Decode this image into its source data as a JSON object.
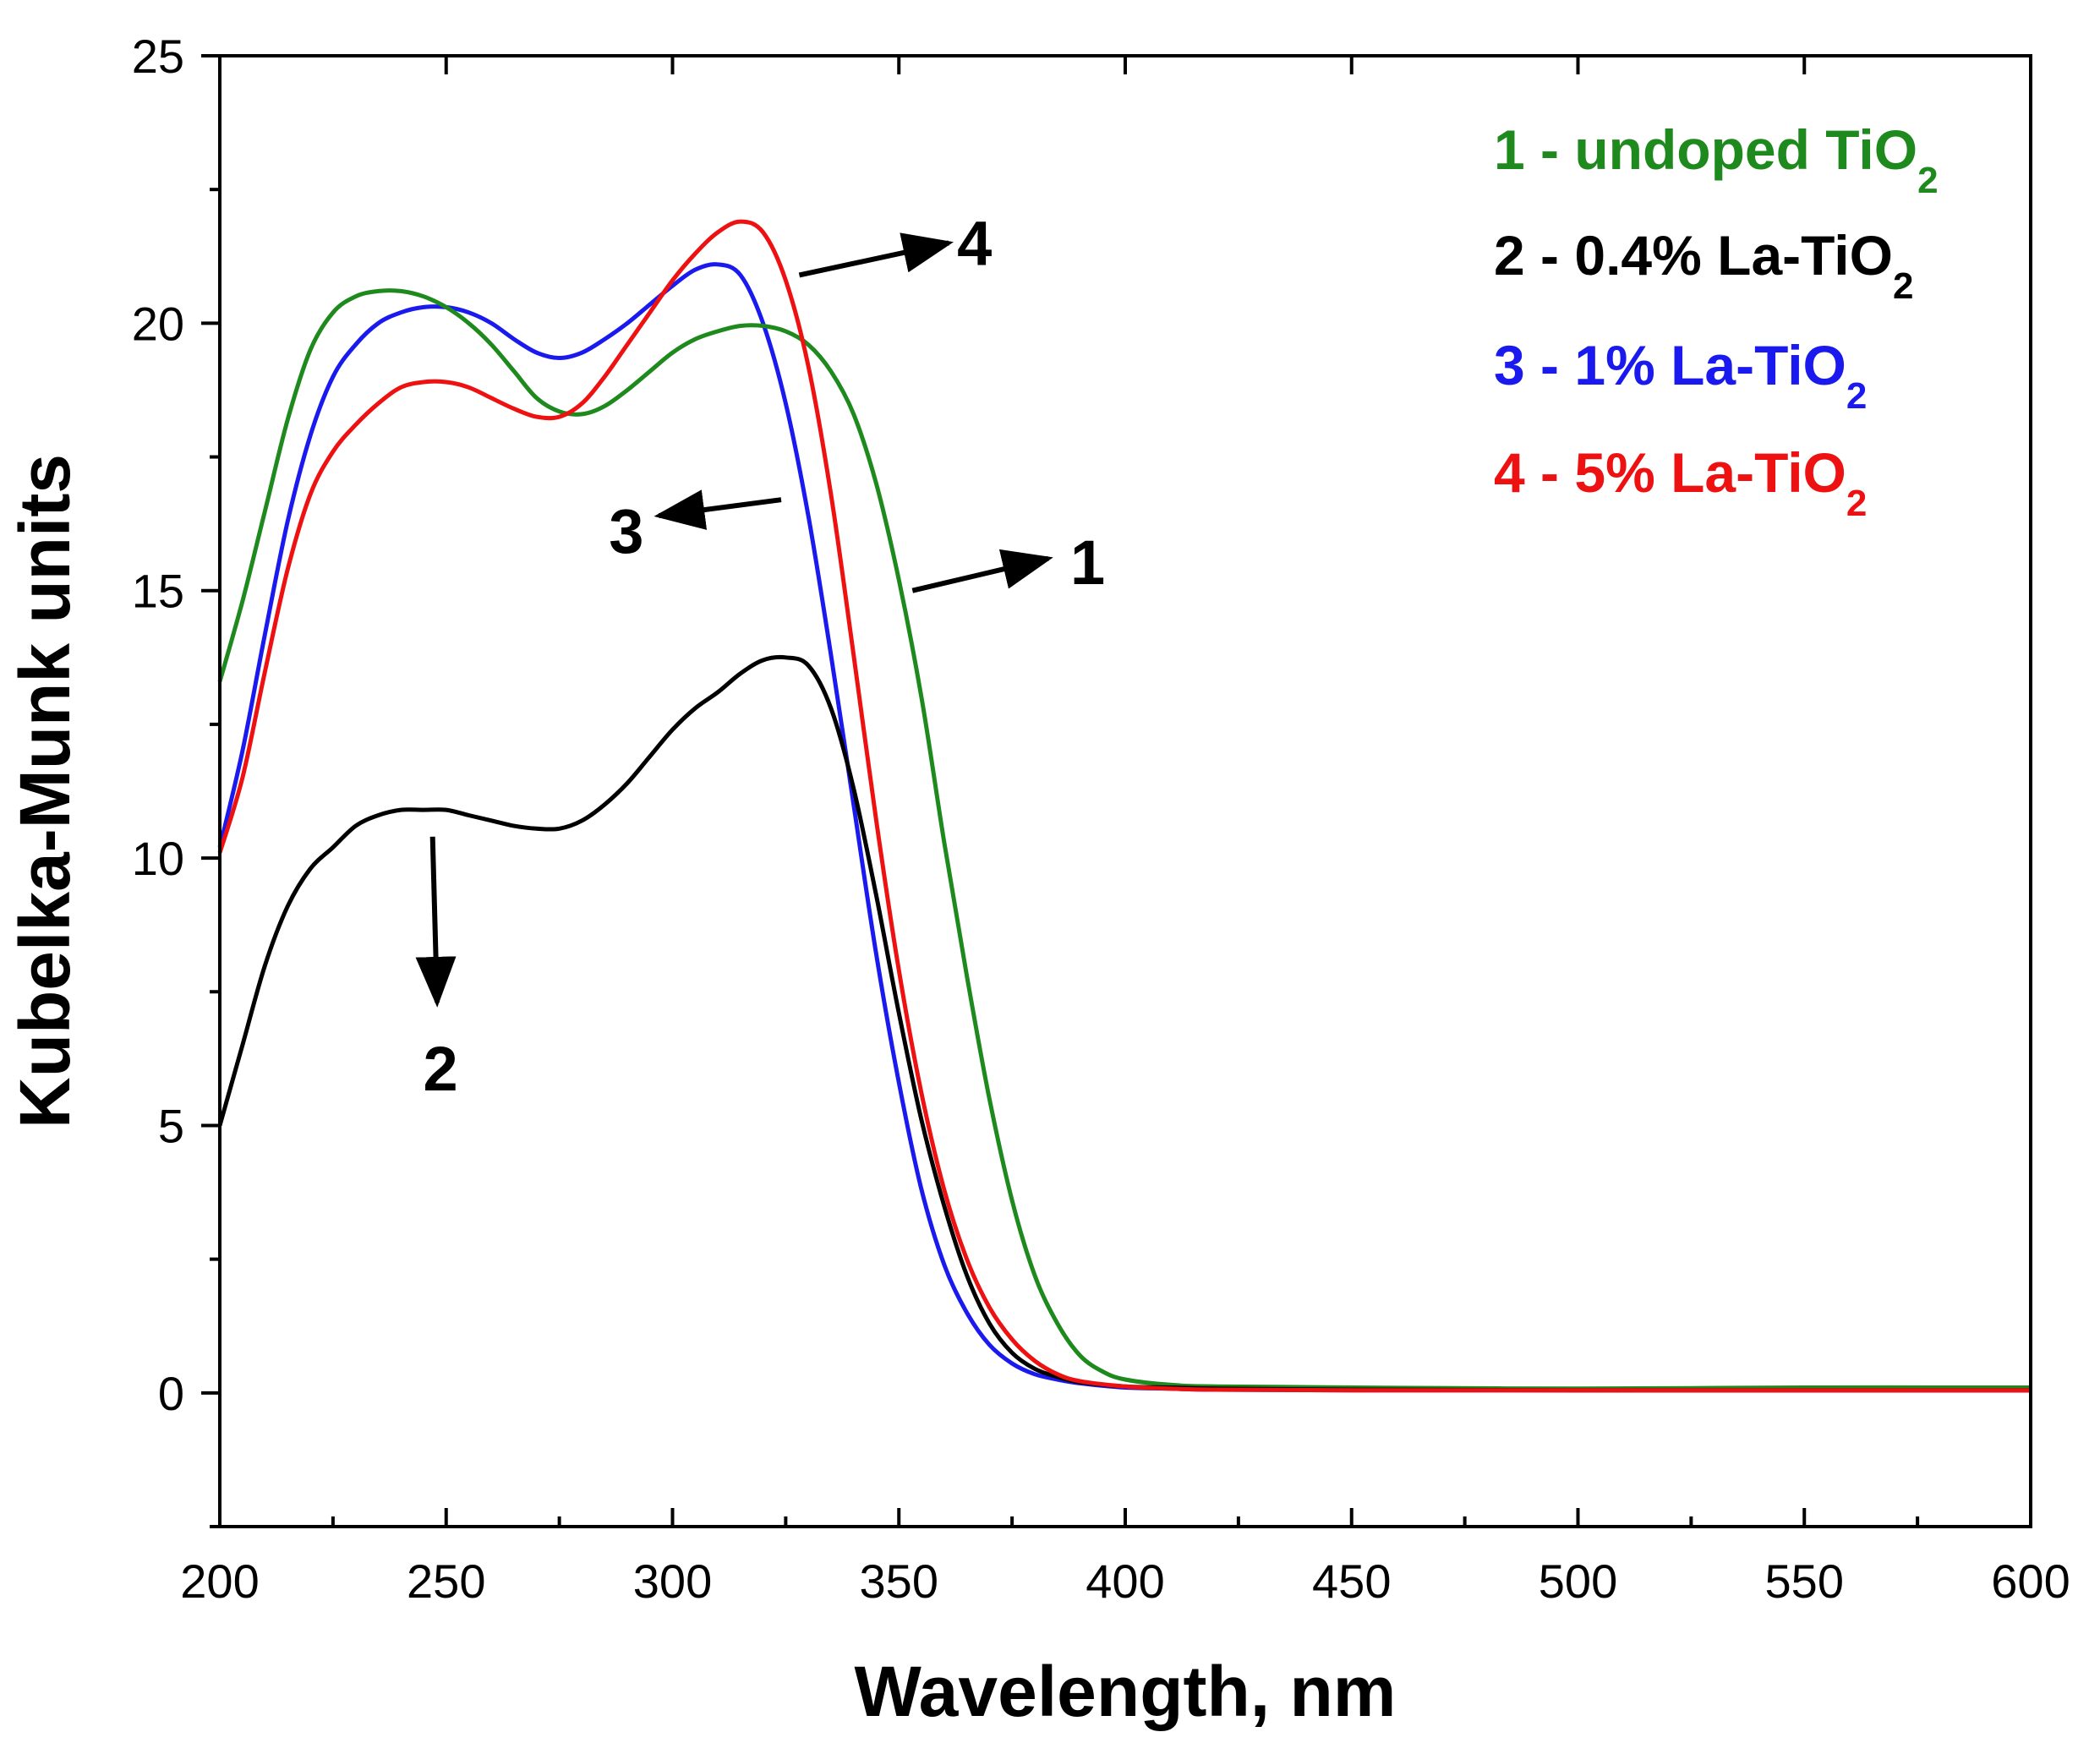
{
  "chart_data": {
    "type": "line",
    "title": "",
    "xlabel": "Wavelength, nm",
    "ylabel": "Kubelka-Munk units",
    "xlim": [
      200,
      600
    ],
    "ylim": [
      -2.5,
      25
    ],
    "xticks": [
      200,
      250,
      300,
      350,
      400,
      450,
      500,
      550,
      600
    ],
    "yticks": [
      0,
      5,
      10,
      15,
      20,
      25
    ],
    "grid": false,
    "legend_position": "top-right",
    "series": [
      {
        "id": "1",
        "name": "1 - undoped TiO",
        "name_sub": "2",
        "color": "#1e8a1e",
        "x": [
          200,
          205,
          210,
          215,
          220,
          225,
          230,
          235,
          240,
          245,
          250,
          255,
          260,
          265,
          270,
          275,
          280,
          285,
          290,
          295,
          300,
          305,
          310,
          315,
          320,
          325,
          330,
          335,
          340,
          345,
          350,
          355,
          360,
          365,
          370,
          375,
          380,
          385,
          390,
          395,
          400,
          410,
          420,
          450,
          500,
          550,
          600
        ],
        "y": [
          13.3,
          14.8,
          16.5,
          18.2,
          19.5,
          20.2,
          20.5,
          20.6,
          20.6,
          20.5,
          20.3,
          20.0,
          19.6,
          19.1,
          18.6,
          18.35,
          18.3,
          18.45,
          18.75,
          19.1,
          19.45,
          19.7,
          19.85,
          19.95,
          19.95,
          19.85,
          19.6,
          19.1,
          18.3,
          17.0,
          15.2,
          13.0,
          10.3,
          7.8,
          5.5,
          3.6,
          2.2,
          1.3,
          0.7,
          0.4,
          0.25,
          0.15,
          0.12,
          0.1,
          0.08,
          0.1,
          0.1
        ]
      },
      {
        "id": "2",
        "name": "2 - 0.4% La-TiO",
        "name_sub": "2",
        "color": "#000000",
        "x": [
          200,
          205,
          210,
          215,
          220,
          225,
          230,
          235,
          240,
          245,
          250,
          255,
          260,
          265,
          270,
          275,
          280,
          285,
          290,
          295,
          300,
          305,
          310,
          315,
          320,
          325,
          330,
          335,
          340,
          345,
          350,
          355,
          360,
          365,
          370,
          375,
          380,
          385,
          390,
          400,
          410,
          420,
          450,
          500,
          550,
          600
        ],
        "y": [
          5.0,
          6.5,
          8.0,
          9.1,
          9.8,
          10.2,
          10.6,
          10.8,
          10.9,
          10.9,
          10.9,
          10.8,
          10.7,
          10.6,
          10.55,
          10.55,
          10.7,
          11.0,
          11.4,
          11.9,
          12.4,
          12.8,
          13.1,
          13.45,
          13.7,
          13.75,
          13.6,
          12.8,
          11.3,
          9.3,
          7.1,
          5.1,
          3.5,
          2.2,
          1.3,
          0.75,
          0.45,
          0.3,
          0.2,
          0.12,
          0.1,
          0.08,
          0.06,
          0.05,
          0.05,
          0.05
        ]
      },
      {
        "id": "3",
        "name": "3 - 1% La-TiO",
        "name_sub": "2",
        "color": "#1a1aee",
        "x": [
          200,
          205,
          210,
          215,
          220,
          225,
          230,
          235,
          240,
          245,
          250,
          255,
          260,
          265,
          270,
          275,
          280,
          285,
          290,
          295,
          300,
          305,
          310,
          315,
          320,
          325,
          330,
          335,
          340,
          345,
          350,
          355,
          360,
          365,
          370,
          375,
          380,
          385,
          390,
          400,
          410,
          420,
          450,
          500,
          550,
          600
        ],
        "y": [
          10.2,
          12.0,
          14.2,
          16.3,
          17.9,
          19.0,
          19.6,
          20.0,
          20.2,
          20.3,
          20.3,
          20.2,
          20.0,
          19.7,
          19.45,
          19.35,
          19.45,
          19.7,
          20.0,
          20.35,
          20.7,
          21.0,
          21.1,
          20.9,
          20.0,
          18.5,
          16.4,
          13.8,
          11.0,
          8.2,
          5.8,
          3.8,
          2.4,
          1.5,
          0.9,
          0.55,
          0.35,
          0.25,
          0.18,
          0.1,
          0.08,
          0.06,
          0.05,
          0.05,
          0.05,
          0.05
        ]
      },
      {
        "id": "4",
        "name": "4 - 5% La-TiO",
        "name_sub": "2",
        "color": "#ee1111",
        "x": [
          200,
          205,
          210,
          215,
          220,
          225,
          230,
          235,
          240,
          245,
          250,
          255,
          260,
          265,
          270,
          275,
          280,
          285,
          290,
          295,
          300,
          305,
          310,
          315,
          320,
          325,
          330,
          335,
          340,
          345,
          350,
          355,
          360,
          365,
          370,
          375,
          380,
          385,
          390,
          400,
          410,
          420,
          450,
          500,
          550,
          600
        ],
        "y": [
          10.1,
          11.5,
          13.5,
          15.4,
          16.8,
          17.6,
          18.1,
          18.5,
          18.8,
          18.9,
          18.9,
          18.8,
          18.6,
          18.4,
          18.25,
          18.25,
          18.5,
          19.0,
          19.6,
          20.2,
          20.8,
          21.3,
          21.7,
          21.9,
          21.7,
          20.8,
          19.2,
          16.8,
          13.8,
          10.7,
          7.9,
          5.6,
          3.8,
          2.5,
          1.6,
          1.0,
          0.6,
          0.35,
          0.22,
          0.12,
          0.08,
          0.06,
          0.05,
          0.05,
          0.05,
          0.05
        ]
      }
    ],
    "annotations": [
      {
        "label": "1",
        "from": [
          353,
          15.0
        ],
        "to": [
          383,
          15.6
        ]
      },
      {
        "label": "2",
        "from": [
          247,
          10.4
        ],
        "to": [
          248,
          7.3
        ]
      },
      {
        "label": "3",
        "from": [
          324,
          16.7
        ],
        "to": [
          297,
          16.4
        ]
      },
      {
        "label": "4",
        "from": [
          328,
          20.9
        ],
        "to": [
          361,
          21.5
        ]
      }
    ]
  }
}
